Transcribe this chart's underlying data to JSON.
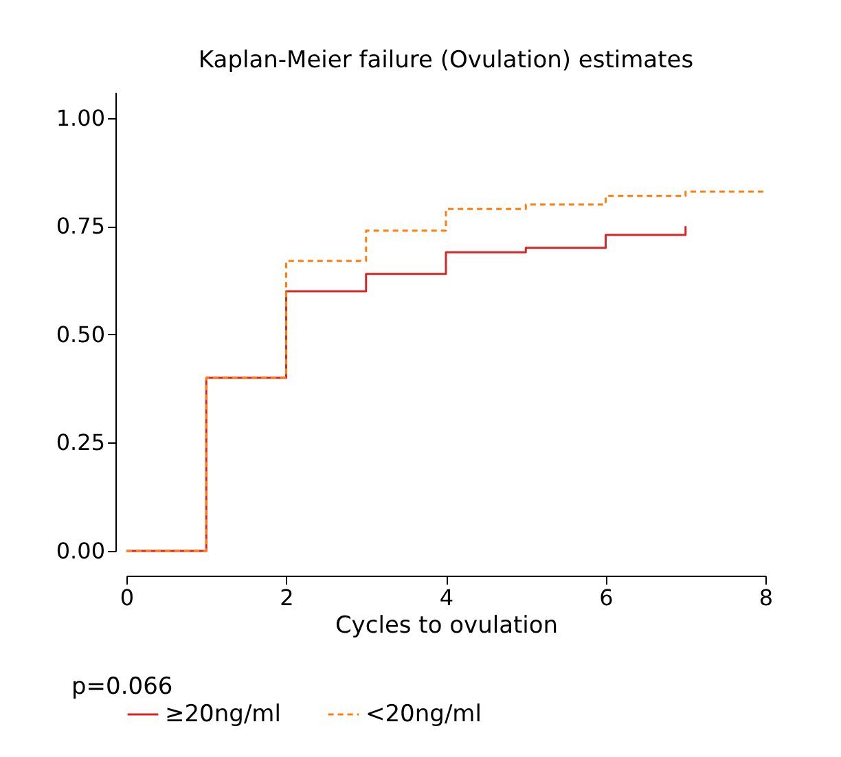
{
  "chart_data": {
    "type": "step",
    "title": "Kaplan-Meier failure (Ovulation) estimates",
    "xlabel": "Cycles to ovulation",
    "xlim": [
      0,
      8
    ],
    "xticks": [
      0,
      2,
      4,
      6,
      8
    ],
    "ylim": [
      0,
      1.06
    ],
    "yticks": [
      {
        "value": 0,
        "label": "0.00"
      },
      {
        "value": 0.25,
        "label": "0.25"
      },
      {
        "value": 0.5,
        "label": "0.50"
      },
      {
        "value": 0.75,
        "label": "0.75"
      },
      {
        "value": 1,
        "label": "1.00"
      }
    ],
    "series": [
      {
        "name": "≥20ng/ml",
        "color": "#d62728",
        "line_style": "solid",
        "x": [
          0,
          1,
          2,
          3,
          4,
          5,
          6,
          7
        ],
        "values": [
          0,
          0.4,
          0.6,
          0.64,
          0.69,
          0.7,
          0.73,
          0.75
        ]
      },
      {
        "name": "<20ng/ml",
        "color": "#ff7f0e",
        "line_style": "dashed",
        "x": [
          0,
          1,
          2,
          3,
          4,
          5,
          6,
          7,
          8
        ],
        "values": [
          0,
          0.4,
          0.67,
          0.74,
          0.79,
          0.8,
          0.82,
          0.83,
          0.83
        ]
      }
    ],
    "legend": "bottom",
    "grid": false,
    "annotations": [
      "p=0.066"
    ]
  }
}
